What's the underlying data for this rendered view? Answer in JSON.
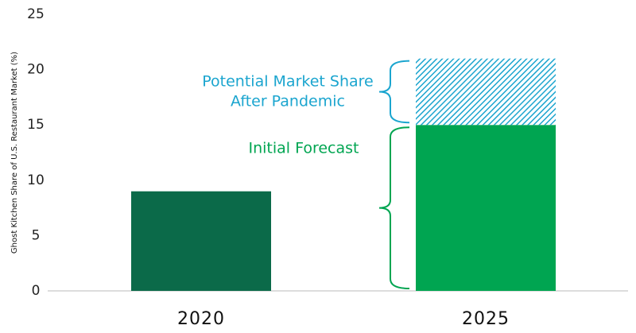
{
  "chart_data": {
    "type": "stacked-bar",
    "y_label": "Ghost Kitchen Share of U.S. Restaurant Market (%)",
    "categories": [
      "2020",
      "2025"
    ],
    "series": [
      {
        "colors": [
          "#0b6a49",
          "#00a551"
        ],
        "values": [
          9,
          15
        ]
      },
      {
        "color": "#1ba5cf",
        "pattern": "hatch",
        "values": [
          null,
          6
        ]
      }
    ],
    "annotations": [
      {
        "text": [
          "Potential Market Share",
          "After Pandemic"
        ],
        "series": 1,
        "color": "#1ba5cf"
      },
      {
        "text": [
          "Initial Forecast"
        ],
        "series": 0,
        "color": "#00a551"
      }
    ],
    "ylim": [
      0,
      25
    ],
    "yticks": [
      0,
      5,
      10,
      15,
      20,
      25
    ]
  }
}
